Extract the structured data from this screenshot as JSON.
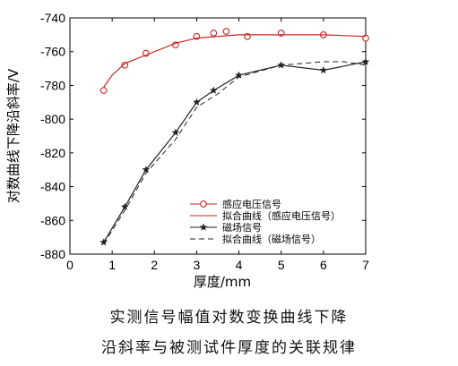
{
  "chart_data": {
    "type": "line",
    "title": "",
    "xlabel": "厚度/mm",
    "ylabel": "对数曲线下降沿斜率/V",
    "xlim": [
      0,
      7
    ],
    "ylim": [
      -880,
      -740
    ],
    "xticks": [
      "0",
      "1",
      "2",
      "3",
      "4",
      "5",
      "6",
      "7"
    ],
    "yticks": [
      "-740",
      "-760",
      "-780",
      "-800",
      "-820",
      "-840",
      "-860",
      "-880"
    ],
    "grid": false,
    "legend_position": "bottom-right",
    "series": [
      {
        "name": "感应电压信号",
        "style": "markers",
        "marker": "circle",
        "color": "#cc2222",
        "x": [
          0.8,
          1.3,
          1.8,
          2.5,
          3.0,
          3.4,
          3.7,
          4.2,
          5.0,
          6.0,
          7.0
        ],
        "y": [
          -783,
          -768,
          -761,
          -756,
          -751,
          -749,
          -748,
          -751,
          -749,
          -750,
          -752
        ]
      },
      {
        "name": "拟合曲线（感应电压信号）",
        "style": "solid",
        "color": "#cc2222",
        "x": [
          0.8,
          1.0,
          1.3,
          1.8,
          2.5,
          3.0,
          3.5,
          4.0,
          5.0,
          6.0,
          7.0
        ],
        "y": [
          -781,
          -774,
          -767,
          -762,
          -755,
          -752,
          -751,
          -750,
          -750,
          -750,
          -751
        ]
      },
      {
        "name": "磁场信号",
        "style": "solid-markers",
        "marker": "star",
        "color": "#222222",
        "x": [
          0.8,
          1.3,
          1.8,
          2.5,
          3.0,
          3.4,
          4.0,
          5.0,
          6.0,
          7.0
        ],
        "y": [
          -873,
          -852,
          -830,
          -808,
          -790,
          -783,
          -774,
          -768,
          -771,
          -766
        ]
      },
      {
        "name": "拟合曲线（磁场信号）",
        "style": "dashed",
        "color": "#222222",
        "x": [
          0.8,
          1.3,
          1.8,
          2.5,
          3.0,
          3.5,
          4.0,
          5.0,
          5.5,
          6.0,
          6.5,
          7.0
        ],
        "y": [
          -874,
          -854,
          -832,
          -812,
          -793,
          -785,
          -775,
          -768,
          -767,
          -766,
          -766,
          -768
        ]
      }
    ]
  },
  "caption": {
    "line1": "实测信号幅值对数变换曲线下降",
    "line2": "沿斜率与被测试件厚度的关联规律"
  }
}
